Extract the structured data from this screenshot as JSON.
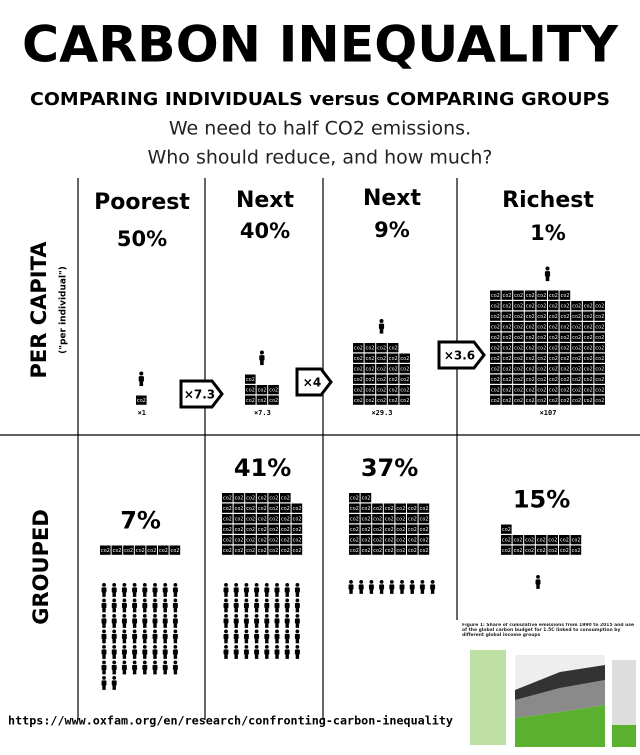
{
  "title": "CARBON INEQUALITY",
  "subtitle": "COMPARING INDIVIDUALS versus COMPARING GROUPS",
  "intro": [
    "We need to half CO2 emissions.",
    "Who should reduce, and how much?"
  ],
  "rows": {
    "per_capita": {
      "label": "PER CAPITA",
      "note": "(\"per individual\")"
    },
    "grouped": {
      "label": "GROUPED"
    }
  },
  "block_label": "co2",
  "groups": [
    {
      "name": "Poorest",
      "share": {
        "value": 50,
        "label": "50%"
      },
      "per_capita": {
        "value": 1,
        "label": "×1"
      },
      "grouped": {
        "value": 7,
        "label": "7%"
      }
    },
    {
      "name": "Next",
      "share": {
        "value": 40,
        "label": "40%"
      },
      "per_capita": {
        "value": 7.3,
        "label": "×7.3"
      },
      "grouped": {
        "value": 41,
        "label": "41%"
      }
    },
    {
      "name": "Next",
      "share": {
        "value": 9,
        "label": "9%"
      },
      "per_capita": {
        "value": 29.3,
        "label": "×29.3"
      },
      "grouped": {
        "value": 37,
        "label": "37%"
      }
    },
    {
      "name": "Richest",
      "share": {
        "value": 1,
        "label": "1%"
      },
      "per_capita": {
        "value": 107,
        "label": "×107"
      },
      "grouped": {
        "value": 15,
        "label": "15%"
      }
    }
  ],
  "ratios": [
    {
      "value": 7.3,
      "label": "×7.3"
    },
    {
      "value": 4,
      "label": "×4"
    },
    {
      "value": 3.6,
      "label": "×3.6"
    }
  ],
  "source": "https://www.oxfam.org/en/research/confronting-carbon-inequality",
  "inset_caption": "Figure 1: Share of cumulative emissions from 1990 to 2015 and use of the global carbon budget for 1.5C linked to consumption by different global income groups"
}
